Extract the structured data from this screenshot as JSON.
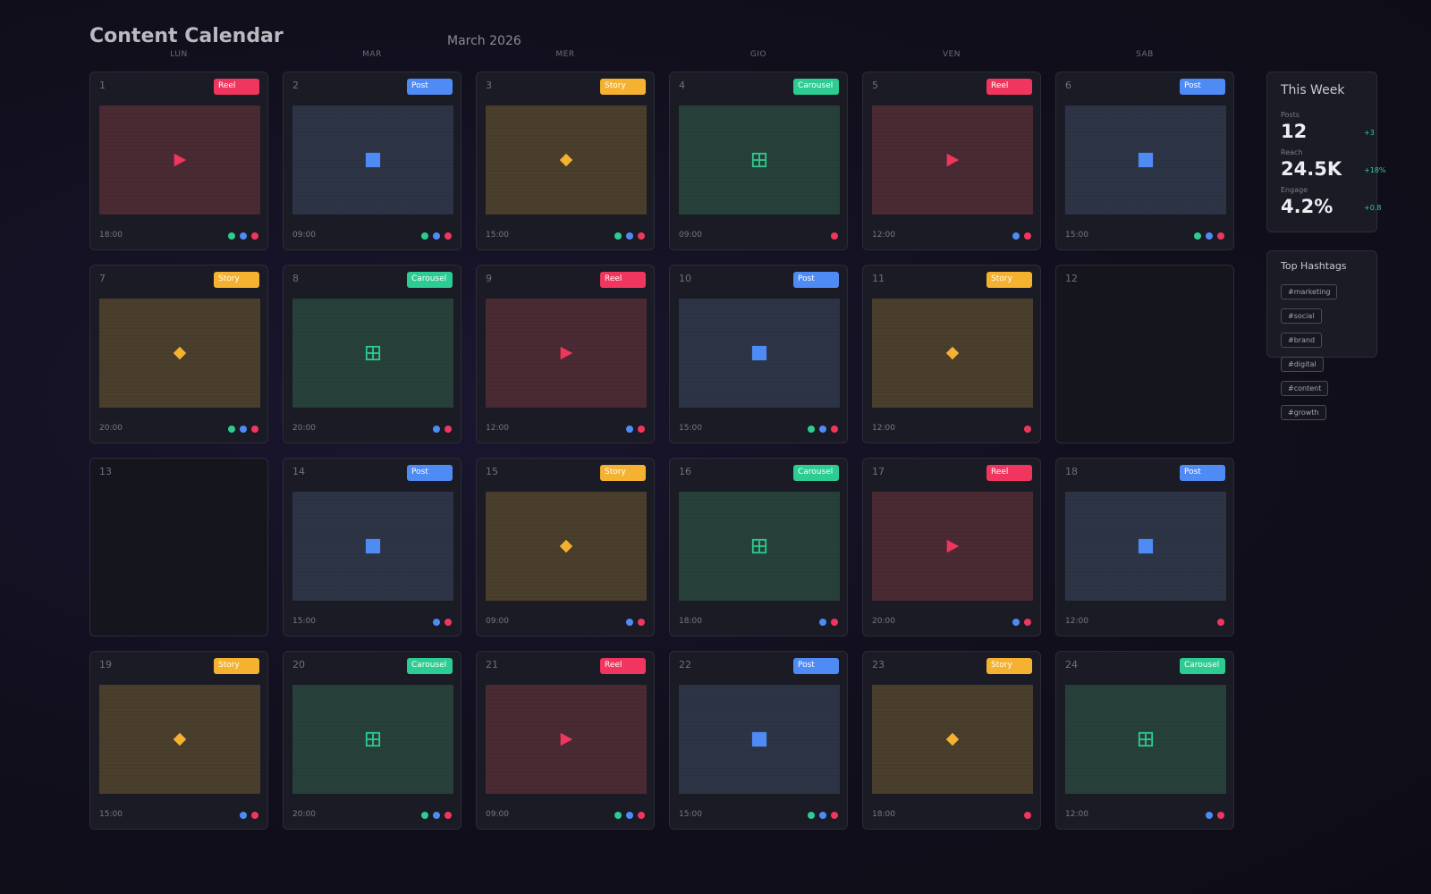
{
  "header": {
    "title": "Content Calendar",
    "month": "March 2026"
  },
  "weekdays": [
    "LUN",
    "MAR",
    "MER",
    "GIO",
    "VEN",
    "SAB"
  ],
  "colors": {
    "Reel": "#f0365e",
    "Post": "#4f8bf5",
    "Story": "#f5b130",
    "Carousel": "#2ccc92"
  },
  "icons": {
    "Reel": "play-icon",
    "Post": "square-icon",
    "Story": "diamond-icon",
    "Carousel": "grid-box-icon"
  },
  "days": [
    {
      "day": "1",
      "type": "Reel",
      "time": "18:00",
      "dots": [
        "green",
        "blue",
        "pink"
      ]
    },
    {
      "day": "2",
      "type": "Post",
      "time": "09:00",
      "dots": [
        "green",
        "blue",
        "pink"
      ]
    },
    {
      "day": "3",
      "type": "Story",
      "time": "15:00",
      "dots": [
        "green",
        "blue",
        "pink"
      ]
    },
    {
      "day": "4",
      "type": "Carousel",
      "time": "09:00",
      "dots": [
        "pink"
      ]
    },
    {
      "day": "5",
      "type": "Reel",
      "time": "12:00",
      "dots": [
        "blue",
        "pink"
      ]
    },
    {
      "day": "6",
      "type": "Post",
      "time": "15:00",
      "dots": [
        "green",
        "blue",
        "pink"
      ]
    },
    {
      "day": "7",
      "type": "Story",
      "time": "20:00",
      "dots": [
        "green",
        "blue",
        "pink"
      ]
    },
    {
      "day": "8",
      "type": "Carousel",
      "time": "20:00",
      "dots": [
        "blue",
        "pink"
      ]
    },
    {
      "day": "9",
      "type": "Reel",
      "time": "12:00",
      "dots": [
        "blue",
        "pink"
      ]
    },
    {
      "day": "10",
      "type": "Post",
      "time": "15:00",
      "dots": [
        "green",
        "blue",
        "pink"
      ]
    },
    {
      "day": "11",
      "type": "Story",
      "time": "12:00",
      "dots": [
        "pink"
      ]
    },
    {
      "day": "12",
      "type": null,
      "time": "",
      "dots": []
    },
    {
      "day": "13",
      "type": null,
      "time": "",
      "dots": []
    },
    {
      "day": "14",
      "type": "Post",
      "time": "15:00",
      "dots": [
        "blue",
        "pink"
      ]
    },
    {
      "day": "15",
      "type": "Story",
      "time": "09:00",
      "dots": [
        "blue",
        "pink"
      ]
    },
    {
      "day": "16",
      "type": "Carousel",
      "time": "18:00",
      "dots": [
        "blue",
        "pink"
      ]
    },
    {
      "day": "17",
      "type": "Reel",
      "time": "20:00",
      "dots": [
        "blue",
        "pink"
      ]
    },
    {
      "day": "18",
      "type": "Post",
      "time": "12:00",
      "dots": [
        "pink"
      ]
    },
    {
      "day": "19",
      "type": "Story",
      "time": "15:00",
      "dots": [
        "blue",
        "pink"
      ]
    },
    {
      "day": "20",
      "type": "Carousel",
      "time": "20:00",
      "dots": [
        "green",
        "blue",
        "pink"
      ]
    },
    {
      "day": "21",
      "type": "Reel",
      "time": "09:00",
      "dots": [
        "green",
        "blue",
        "pink"
      ]
    },
    {
      "day": "22",
      "type": "Post",
      "time": "15:00",
      "dots": [
        "green",
        "blue",
        "pink"
      ]
    },
    {
      "day": "23",
      "type": "Story",
      "time": "18:00",
      "dots": [
        "pink"
      ]
    },
    {
      "day": "24",
      "type": "Carousel",
      "time": "12:00",
      "dots": [
        "blue",
        "pink"
      ]
    }
  ],
  "week": {
    "title": "This Week",
    "stats": [
      {
        "label": "Posts",
        "value": "12",
        "delta": "+3"
      },
      {
        "label": "Reach",
        "value": "24.5K",
        "delta": "+18%"
      },
      {
        "label": "Engage",
        "value": "4.2%",
        "delta": "+0.8"
      }
    ]
  },
  "hashtags": {
    "title": "Top Hashtags",
    "items": [
      "#marketing",
      "#social",
      "#brand",
      "#digital",
      "#content",
      "#growth"
    ]
  }
}
